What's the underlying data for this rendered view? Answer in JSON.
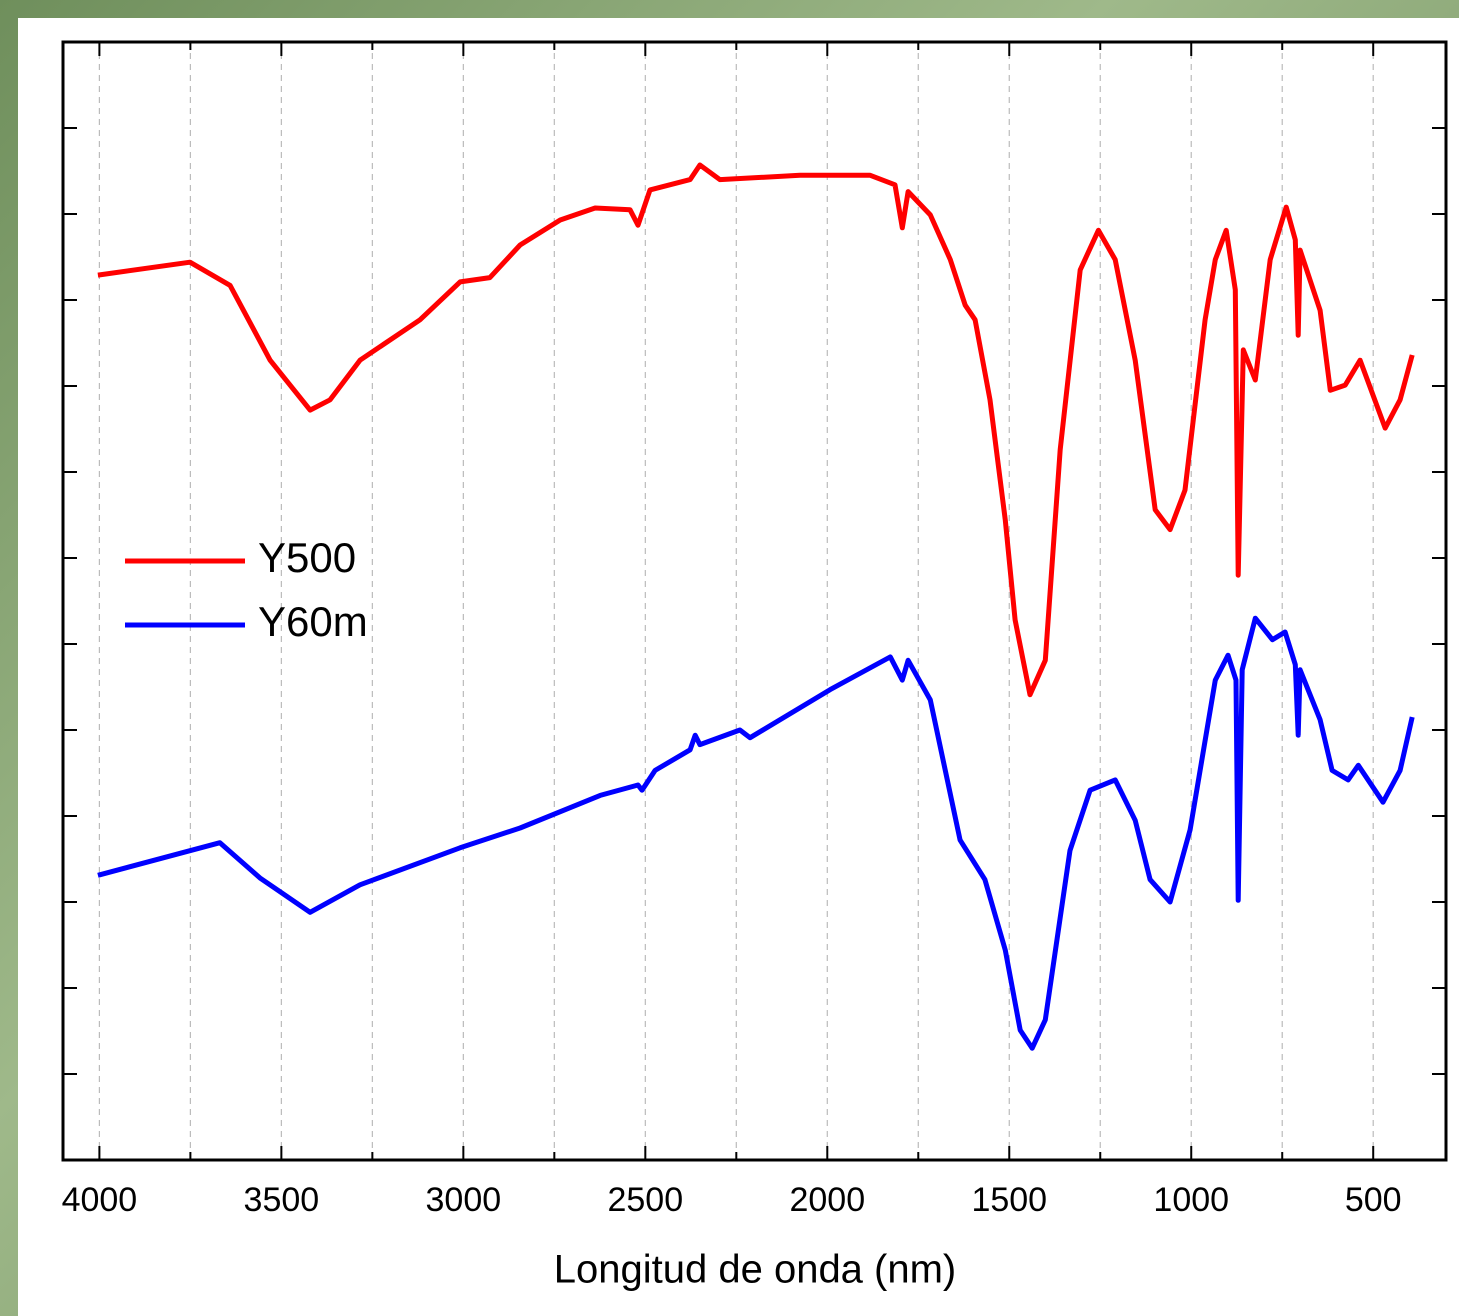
{
  "chart_data": {
    "type": "line",
    "xlabel": "Longitud de onda (nm)",
    "xlim": [
      4100,
      300
    ],
    "xticks": [
      4000,
      3500,
      3000,
      2500,
      2000,
      1500,
      1000,
      500
    ],
    "minor_xticks": [
      3750,
      3250,
      2750,
      2250,
      1750,
      1250,
      750
    ],
    "ylim": [
      0,
      13
    ],
    "yticks": [
      1,
      2,
      3,
      4,
      5,
      6,
      7,
      8,
      9,
      10,
      11,
      12
    ],
    "grid": true,
    "legend": "center left",
    "series": [
      {
        "name": "Y500",
        "color": "#ff0000",
        "x": [
          4004,
          3751,
          3641,
          3531,
          3421,
          3366,
          3284,
          3119,
          3009,
          2927,
          2844,
          2734,
          2638,
          2542,
          2520,
          2487,
          2377,
          2350,
          2295,
          2075,
          1882,
          1814,
          1794,
          1778,
          1717,
          1662,
          1621,
          1594,
          1553,
          1511,
          1484,
          1443,
          1401,
          1360,
          1305,
          1255,
          1209,
          1154,
          1099,
          1058,
          1017,
          962,
          934,
          904,
          879,
          871,
          857,
          824,
          783,
          739,
          714,
          706,
          701,
          646,
          618,
          577,
          536,
          467,
          426,
          393
        ],
        "values": [
          10.29,
          10.44,
          10.17,
          9.3,
          8.72,
          8.84,
          9.3,
          9.77,
          10.21,
          10.26,
          10.64,
          10.93,
          11.07,
          11.05,
          10.87,
          11.28,
          11.4,
          11.57,
          11.4,
          11.45,
          11.45,
          11.34,
          10.84,
          11.26,
          10.99,
          10.47,
          9.94,
          9.77,
          8.84,
          7.44,
          6.28,
          5.41,
          5.81,
          8.26,
          10.35,
          10.81,
          10.47,
          9.3,
          7.56,
          7.33,
          7.79,
          9.77,
          10.47,
          10.81,
          10.12,
          6.8,
          9.42,
          9.07,
          10.47,
          11.08,
          10.7,
          9.59,
          10.58,
          9.88,
          8.95,
          9.01,
          9.3,
          8.51,
          8.84,
          9.36
        ]
      },
      {
        "name": "Y60m",
        "color": "#0000ff",
        "x": [
          4004,
          3669,
          3559,
          3421,
          3284,
          3009,
          2844,
          2624,
          2520,
          2509,
          2473,
          2377,
          2363,
          2350,
          2240,
          2212,
          1992,
          1827,
          1794,
          1778,
          1717,
          1635,
          1567,
          1511,
          1470,
          1437,
          1401,
          1333,
          1278,
          1209,
          1154,
          1113,
          1058,
          1003,
          934,
          899,
          877,
          871,
          860,
          824,
          777,
          742,
          714,
          706,
          701,
          646,
          613,
          569,
          541,
          473,
          426,
          393
        ],
        "values": [
          3.31,
          3.69,
          3.28,
          2.88,
          3.2,
          3.63,
          3.86,
          4.24,
          4.36,
          4.3,
          4.53,
          4.77,
          4.94,
          4.83,
          5.0,
          4.91,
          5.47,
          5.85,
          5.58,
          5.81,
          5.35,
          3.72,
          3.26,
          2.44,
          1.51,
          1.3,
          1.63,
          3.6,
          4.3,
          4.42,
          3.95,
          3.26,
          3.0,
          3.84,
          5.58,
          5.87,
          5.58,
          3.02,
          5.7,
          6.3,
          6.05,
          6.14,
          5.76,
          4.94,
          5.7,
          5.12,
          4.53,
          4.42,
          4.59,
          4.16,
          4.53,
          5.15
        ]
      }
    ]
  }
}
